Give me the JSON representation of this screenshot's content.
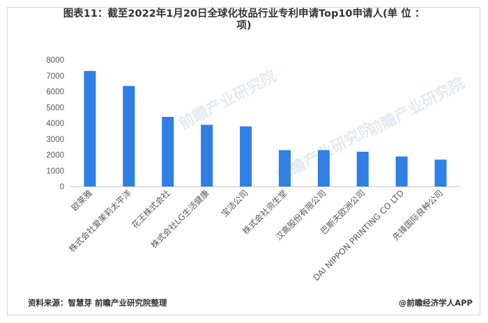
{
  "title_lines": [
    "图表11：截至2022年1月20日全球化妆品行业专利申请Top10申请人(单 位 ：",
    "项)"
  ],
  "source": "资料来源：智慧芽 前瞻产业研究院整理",
  "brand": "@前瞻经济学人APP",
  "watermark": "前瞻产业研究院",
  "colors": {
    "bar": "#2f7fe6",
    "axis": "#bfbfbf",
    "text": "#595959"
  },
  "chart_data": {
    "type": "bar",
    "title": "图表11：截至2022年1月20日全球化妆品行业专利申请Top10申请人(单 位 ：项)",
    "categories": [
      "欧莱雅",
      "株式会社爱茉莉太平洋",
      "花王株式会社",
      "株式会社LG生活健康",
      "宝洁公司",
      "株式会社资生堂",
      "汉高股份有限公司",
      "巴斯夫欧洲公司",
      "DAI NIPPON PRINTING CO LTD",
      "先锋国际良种公司"
    ],
    "values": [
      7300,
      6350,
      4400,
      3900,
      3800,
      2300,
      2300,
      2200,
      1900,
      1700
    ],
    "yticks": [
      0,
      1000,
      2000,
      3000,
      4000,
      5000,
      6000,
      7000,
      8000
    ],
    "ylim": [
      0,
      8000
    ],
    "grid": false,
    "legend": "none"
  }
}
